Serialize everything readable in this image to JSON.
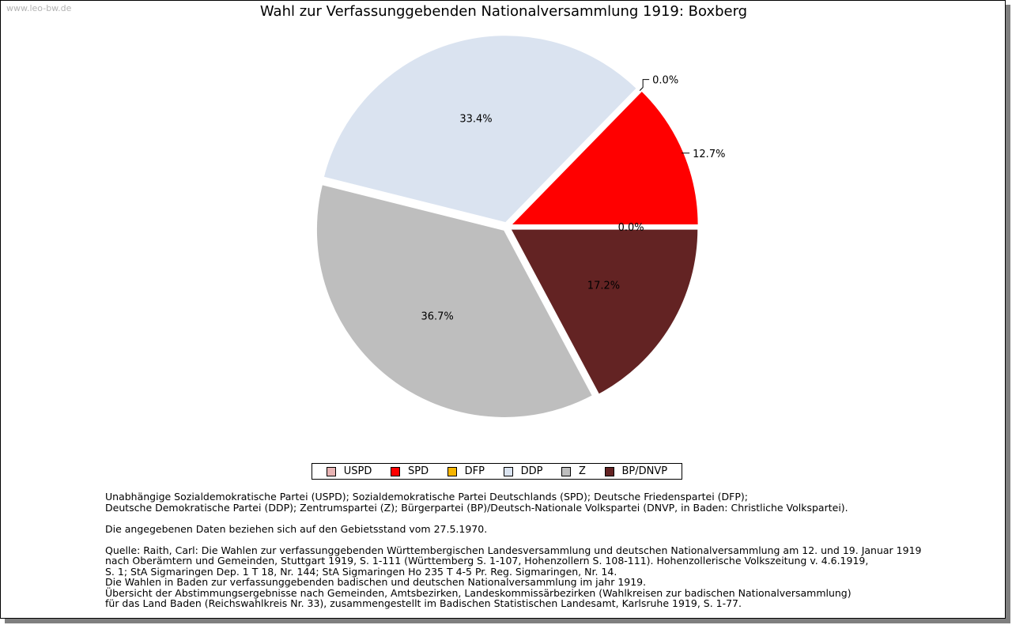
{
  "watermark": "www.leo-bw.de",
  "chart_data": {
    "type": "pie",
    "title": "Wahl zur Verfassunggebenden Nationalversammlung 1919: Boxberg",
    "slices": [
      {
        "name": "USPD",
        "value": 0.0,
        "label": "0.0%",
        "color": "#e8b4b4"
      },
      {
        "name": "SPD",
        "value": 12.7,
        "label": "12.7%",
        "color": "#ff0000"
      },
      {
        "name": "DFP",
        "value": 0.0,
        "label": "0.0%",
        "color": "#f5b400"
      },
      {
        "name": "DDP",
        "value": 33.4,
        "label": "33.4%",
        "color": "#dae3f0"
      },
      {
        "name": "Z",
        "value": 36.7,
        "label": "36.7%",
        "color": "#bebebe"
      },
      {
        "name": "BP/DNVP",
        "value": 17.2,
        "label": "17.2%",
        "color": "#632323"
      }
    ],
    "legend_position": "bottom"
  },
  "notes": {
    "parties": [
      "Unabhängige Sozialdemokratische Partei (USPD); Sozialdemokratische Partei Deutschlands (SPD); Deutsche Friedenspartei (DFP);",
      "Deutsche Demokratische Partei (DDP); Zentrumspartei (Z); Bürgerpartei (BP)/Deutsch-Nationale Volkspartei (DNVP, in Baden: Christliche Volkspartei)."
    ],
    "territory": "Die angegebenen Daten beziehen sich auf den Gebietsstand vom 27.5.1970.",
    "sources": [
      "Quelle: Raith, Carl: Die Wahlen zur verfassunggebenden Württembergischen Landesversammlung und deutschen Nationalversammlung am 12. und 19. Januar 1919",
      "nach Oberämtern und Gemeinden, Stuttgart 1919, S. 1-111 (Württemberg S. 1-107, Hohenzollern S. 108-111). Hohenzollerische Volkszeitung v. 4.6.1919,",
      "S. 1; StA Sigmaringen Dep. 1 T 18, Nr. 144; StA Sigmaringen Ho 235 T 4-5 Pr. Reg. Sigmaringen, Nr. 14.",
      "Die Wahlen in Baden zur verfassunggebenden badischen und deutschen Nationalversammlung im jahr 1919.",
      "Übersicht der Abstimmungsergebnisse nach Gemeinden, Amtsbezirken, Landeskommissärbezirken (Wahlkreisen zur badischen Nationalversammlung)",
      "für das Land Baden (Reichswahlkreis Nr. 33), zusammengestellt im Badischen Statistischen Landesamt, Karlsruhe 1919, S. 1-77."
    ]
  }
}
